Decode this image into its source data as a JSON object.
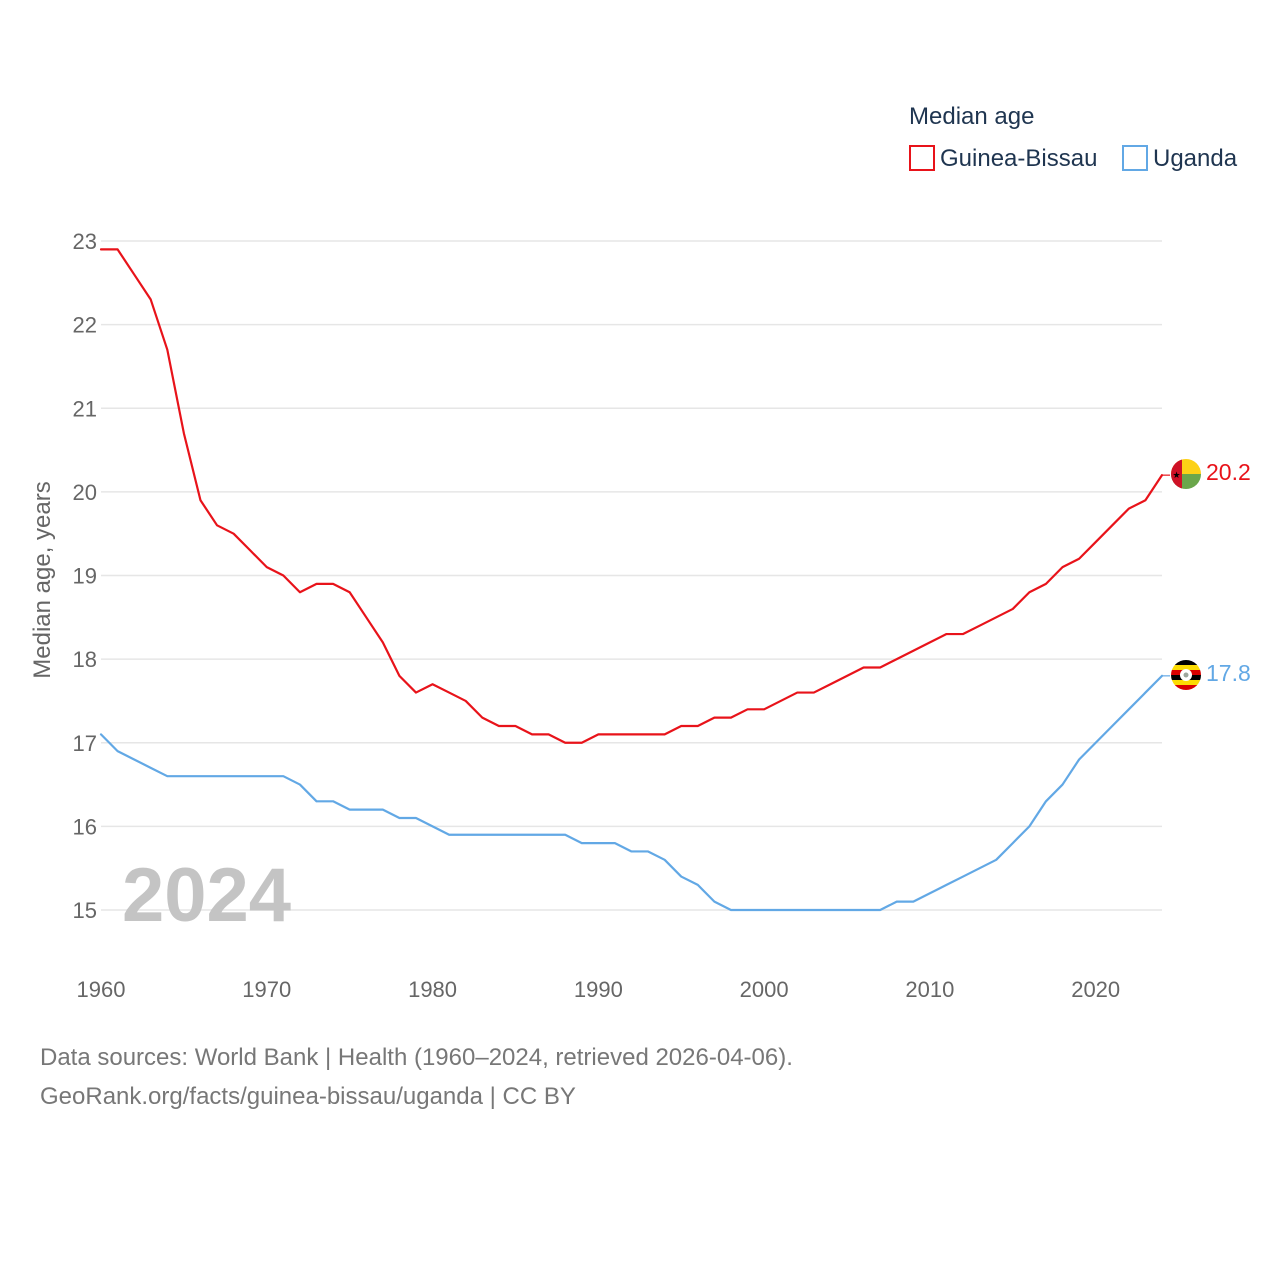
{
  "chart_data": {
    "type": "line",
    "title": "Median age",
    "ylabel": "Median age, years",
    "xlabel": "",
    "xlim": [
      1960,
      2024
    ],
    "ylim": [
      15,
      23
    ],
    "x_ticks": [
      "1960",
      "1970",
      "1980",
      "1990",
      "2000",
      "2010",
      "2020"
    ],
    "y_ticks": [
      "15",
      "16",
      "17",
      "18",
      "19",
      "20",
      "21",
      "22",
      "23"
    ],
    "grid": true,
    "legend_position": "top-right",
    "year_watermark": "2024",
    "x": [
      1960,
      1961,
      1962,
      1963,
      1964,
      1965,
      1966,
      1967,
      1968,
      1969,
      1970,
      1971,
      1972,
      1973,
      1974,
      1975,
      1976,
      1977,
      1978,
      1979,
      1980,
      1981,
      1982,
      1983,
      1984,
      1985,
      1986,
      1987,
      1988,
      1989,
      1990,
      1991,
      1992,
      1993,
      1994,
      1995,
      1996,
      1997,
      1998,
      1999,
      2000,
      2001,
      2002,
      2003,
      2004,
      2005,
      2006,
      2007,
      2008,
      2009,
      2010,
      2011,
      2012,
      2013,
      2014,
      2015,
      2016,
      2017,
      2018,
      2019,
      2020,
      2021,
      2022,
      2023,
      2024
    ],
    "series": [
      {
        "name": "Guinea-Bissau",
        "color": "#e8131a",
        "flag": "guinea-bissau-flag-icon",
        "end_label": "20.2",
        "values": [
          22.9,
          22.9,
          22.6,
          22.3,
          21.7,
          20.7,
          19.9,
          19.6,
          19.5,
          19.3,
          19.1,
          19.0,
          18.8,
          18.9,
          18.9,
          18.8,
          18.5,
          18.2,
          17.8,
          17.6,
          17.7,
          17.6,
          17.5,
          17.3,
          17.2,
          17.2,
          17.1,
          17.1,
          17.0,
          17.0,
          17.1,
          17.1,
          17.1,
          17.1,
          17.1,
          17.2,
          17.2,
          17.3,
          17.3,
          17.4,
          17.4,
          17.5,
          17.6,
          17.6,
          17.7,
          17.8,
          17.9,
          17.9,
          18.0,
          18.1,
          18.2,
          18.3,
          18.3,
          18.4,
          18.5,
          18.6,
          18.8,
          18.9,
          19.1,
          19.2,
          19.4,
          19.6,
          19.8,
          19.9,
          20.2
        ]
      },
      {
        "name": "Uganda",
        "color": "#62a8e5",
        "flag": "uganda-flag-icon",
        "end_label": "17.8",
        "values": [
          17.1,
          16.9,
          16.8,
          16.7,
          16.6,
          16.6,
          16.6,
          16.6,
          16.6,
          16.6,
          16.6,
          16.6,
          16.5,
          16.3,
          16.3,
          16.2,
          16.2,
          16.2,
          16.1,
          16.1,
          16.0,
          15.9,
          15.9,
          15.9,
          15.9,
          15.9,
          15.9,
          15.9,
          15.9,
          15.8,
          15.8,
          15.8,
          15.7,
          15.7,
          15.6,
          15.4,
          15.3,
          15.1,
          15.0,
          15.0,
          15.0,
          15.0,
          15.0,
          15.0,
          15.0,
          15.0,
          15.0,
          15.0,
          15.1,
          15.1,
          15.2,
          15.3,
          15.4,
          15.5,
          15.6,
          15.8,
          16.0,
          16.3,
          16.5,
          16.8,
          17.0,
          17.2,
          17.4,
          17.6,
          17.8
        ]
      }
    ]
  },
  "footer": {
    "sources": "Data sources: World Bank | Health (1960–2024, retrieved 2026-04-06).",
    "link": "GeoRank.org/facts/guinea-bissau/uganda | CC BY"
  }
}
